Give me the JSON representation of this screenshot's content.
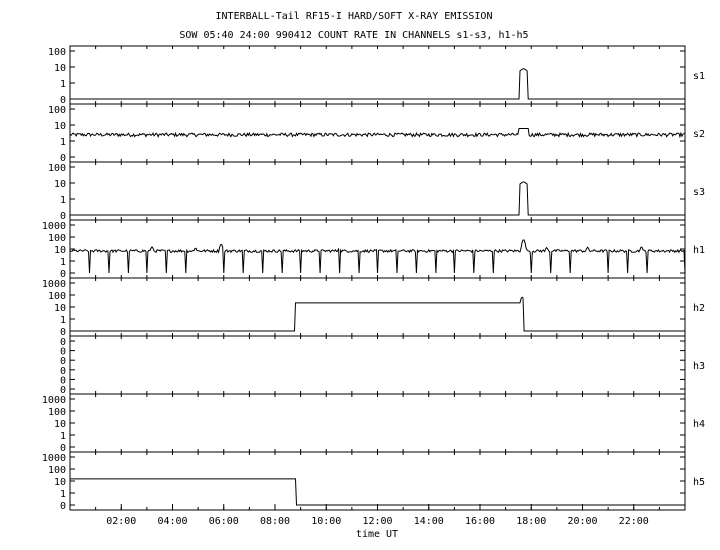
{
  "title_line1": "INTERBALL-Tail RF15-I HARD/SOFT X-RAY EMISSION",
  "title_line2": "SOW 05:40 24:00 990412  COUNT RATE IN CHANNELS s1-s3, h1-h5",
  "xlabel": "time UT",
  "chart_data": {
    "type": "line",
    "title": "INTERBALL-Tail RF15-I HARD/SOFT X-RAY EMISSION",
    "subtitle": "SOW 05:40 24:00 990412  COUNT RATE IN CHANNELS s1-s3, h1-h5",
    "xlabel": "time UT",
    "xlim": [
      0,
      24
    ],
    "xticks": [
      2,
      4,
      6,
      8,
      10,
      12,
      14,
      16,
      18,
      20,
      22
    ],
    "xtick_labels": [
      "02:00",
      "04:00",
      "06:00",
      "08:00",
      "10:00",
      "12:00",
      "14:00",
      "16:00",
      "18:00",
      "20:00",
      "22:00"
    ],
    "yscale": "log",
    "grid": false,
    "panels": [
      {
        "name": "s1",
        "ytick_labels": [
          "100",
          "10",
          "1",
          "0"
        ],
        "baseline": 0,
        "features": [
          {
            "type": "spike",
            "t": 17.7,
            "width": 0.15,
            "value": 8
          }
        ]
      },
      {
        "name": "s2",
        "ytick_labels": [
          "100",
          "10",
          "1",
          "0"
        ],
        "baseline": 2.5,
        "features": [
          {
            "type": "bump",
            "t": 17.7,
            "width": 0.2,
            "value": 6
          }
        ]
      },
      {
        "name": "s3",
        "ytick_labels": [
          "100",
          "10",
          "1",
          "0"
        ],
        "baseline": 0,
        "features": [
          {
            "type": "spike",
            "t": 17.7,
            "width": 0.15,
            "value": 12
          }
        ]
      },
      {
        "name": "h1",
        "ytick_labels": [
          "1000",
          "100",
          "10",
          "1",
          "0"
        ],
        "baseline": 7,
        "periodic_dropouts_hours": 0.75,
        "features": [
          {
            "type": "peak",
            "t": 3.2,
            "value": 15
          },
          {
            "type": "peak",
            "t": 4.9,
            "value": 12
          },
          {
            "type": "peak",
            "t": 5.9,
            "value": 25
          },
          {
            "type": "peak",
            "t": 10.5,
            "value": 12
          },
          {
            "type": "peak",
            "t": 17.7,
            "value": 60
          },
          {
            "type": "peak",
            "t": 18.6,
            "value": 13
          },
          {
            "type": "peak",
            "t": 20.2,
            "value": 14
          },
          {
            "type": "peak",
            "t": 22.3,
            "value": 15
          }
        ]
      },
      {
        "name": "h2",
        "ytick_labels": [
          "1000",
          "100",
          "10",
          "1",
          "0"
        ],
        "baseline": 0,
        "features": [
          {
            "type": "step",
            "t_start": 8.8,
            "t_end": 17.6,
            "value": 22
          },
          {
            "type": "spike",
            "t": 17.65,
            "width": 0.05,
            "value": 70
          }
        ]
      },
      {
        "name": "h3",
        "ytick_labels": [
          "0",
          "0",
          "0",
          "0",
          "0",
          "0"
        ],
        "baseline": 0,
        "features": []
      },
      {
        "name": "h4",
        "ytick_labels": [
          "1000",
          "100",
          "10",
          "1",
          "0"
        ],
        "baseline": 0,
        "features": []
      },
      {
        "name": "h5",
        "ytick_labels": [
          "1000",
          "100",
          "10",
          "1",
          "0"
        ],
        "baseline": 0,
        "features": [
          {
            "type": "step",
            "t_start": 0,
            "t_end": 8.8,
            "value": 15
          }
        ]
      }
    ]
  }
}
